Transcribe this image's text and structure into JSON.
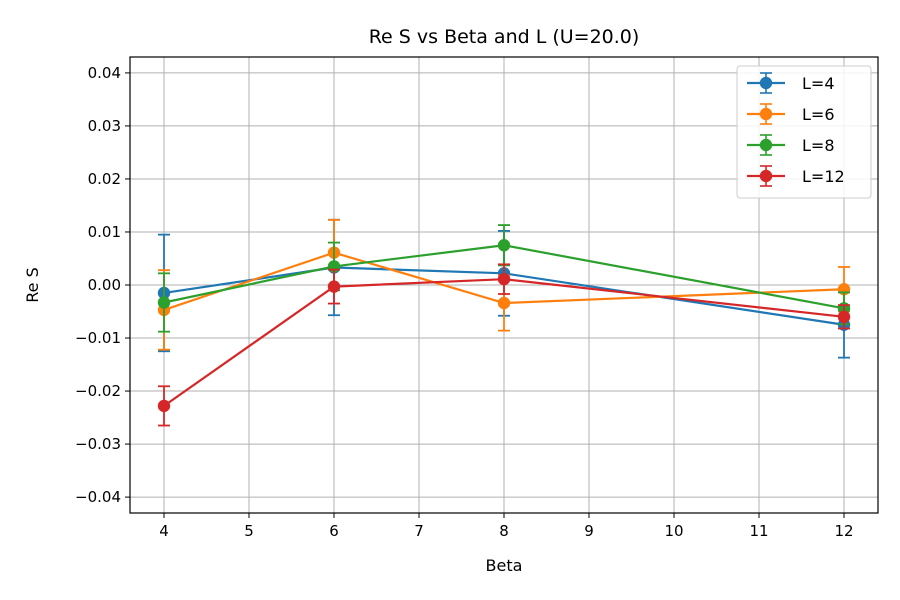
{
  "chart_data": {
    "type": "line",
    "title": "Re S vs Beta and L (U=20.0)",
    "xlabel": "Beta",
    "ylabel": "Re S",
    "xlim": [
      3.6,
      12.4
    ],
    "ylim": [
      -0.043,
      0.043
    ],
    "x_ticks": [
      4,
      5,
      6,
      7,
      8,
      9,
      10,
      11,
      12
    ],
    "y_ticks": [
      -0.04,
      -0.03,
      -0.02,
      -0.01,
      0.0,
      0.01,
      0.02,
      0.03,
      0.04
    ],
    "y_tick_labels": [
      "−0.04",
      "−0.03",
      "−0.02",
      "−0.01",
      "0.00",
      "0.01",
      "0.02",
      "0.03",
      "0.04"
    ],
    "grid": true,
    "legend_position": "top-right",
    "series": [
      {
        "name": "L=4",
        "color": "#1f77b4",
        "x": [
          4,
          6,
          8,
          12
        ],
        "y": [
          -0.0015,
          0.0033,
          0.0022,
          -0.0075
        ],
        "err": [
          0.011,
          0.009,
          0.008,
          0.0062
        ]
      },
      {
        "name": "L=6",
        "color": "#ff7f0e",
        "x": [
          4,
          6,
          8,
          12
        ],
        "y": [
          -0.0047,
          0.0061,
          -0.0034,
          -0.0008
        ],
        "err": [
          0.0075,
          0.0062,
          0.0052,
          0.0042
        ]
      },
      {
        "name": "L=8",
        "color": "#2ca02c",
        "x": [
          4,
          6,
          8,
          12
        ],
        "y": [
          -0.0033,
          0.0035,
          0.0075,
          -0.0044
        ],
        "err": [
          0.0055,
          0.0045,
          0.0038,
          0.003
        ]
      },
      {
        "name": "L=12",
        "color": "#d62728",
        "x": [
          4,
          6,
          8,
          12
        ],
        "y": [
          -0.0228,
          -0.0003,
          0.0011,
          -0.006
        ],
        "err": [
          0.0037,
          0.0032,
          0.0028,
          0.0022
        ]
      }
    ]
  }
}
